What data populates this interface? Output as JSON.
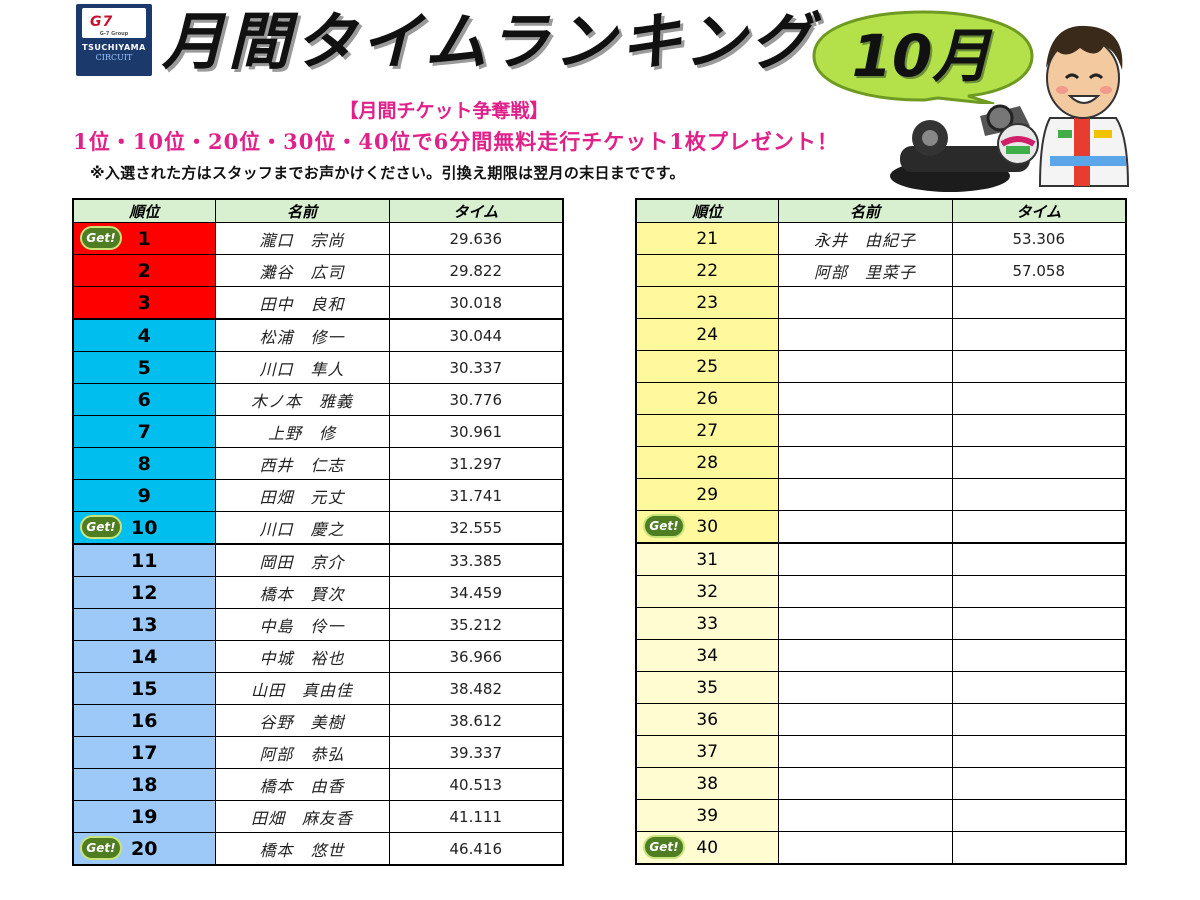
{
  "logo": {
    "top_mark": "G7",
    "top_sub": "G-7 Group",
    "line1": "TSUCHIYAMA",
    "line2": "CIRCUIT"
  },
  "header": {
    "title": "月間タイムランキング",
    "month": "10月",
    "campaign_title": "【月間チケット争奪戦】",
    "campaign_text": "1位・10位・20位・30位・40位で6分間無料走行チケット1枚プレゼント！",
    "note": "※入選された方はスタッフまでお声かけください。引換え期限は翌月の末日までです。"
  },
  "columns": {
    "position": "順位",
    "name": "名前",
    "time": "タイム"
  },
  "badge_label": "Get!",
  "colors": {
    "top3": "#ff0000",
    "rank4_10": "#00bfef",
    "rank11_20": "#9cc9f7",
    "rank21_30": "#fff89c",
    "rank31_40": "#fffcd2",
    "header_bg": "#d8f0d0",
    "campaign_pink": "#e0218a",
    "bubble_green": "#b4e04a"
  },
  "left_rows": [
    {
      "position": "1",
      "name": "瀧口　宗尚",
      "time": "29.636",
      "badge": true
    },
    {
      "position": "2",
      "name": "灘谷　広司",
      "time": "29.822",
      "badge": false
    },
    {
      "position": "3",
      "name": "田中　良和",
      "time": "30.018",
      "badge": false
    },
    {
      "position": "4",
      "name": "松浦　修一",
      "time": "30.044",
      "badge": false
    },
    {
      "position": "5",
      "name": "川口　隼人",
      "time": "30.337",
      "badge": false
    },
    {
      "position": "6",
      "name": "木ノ本　雅義",
      "time": "30.776",
      "badge": false
    },
    {
      "position": "7",
      "name": "上野　修",
      "time": "30.961",
      "badge": false
    },
    {
      "position": "8",
      "name": "西井　仁志",
      "time": "31.297",
      "badge": false
    },
    {
      "position": "9",
      "name": "田畑　元丈",
      "time": "31.741",
      "badge": false
    },
    {
      "position": "10",
      "name": "川口　慶之",
      "time": "32.555",
      "badge": true
    },
    {
      "position": "11",
      "name": "岡田　京介",
      "time": "33.385",
      "badge": false
    },
    {
      "position": "12",
      "name": "橋本　賢次",
      "time": "34.459",
      "badge": false
    },
    {
      "position": "13",
      "name": "中島　伶一",
      "time": "35.212",
      "badge": false
    },
    {
      "position": "14",
      "name": "中城　裕也",
      "time": "36.966",
      "badge": false
    },
    {
      "position": "15",
      "name": "山田　真由佳",
      "time": "38.482",
      "badge": false
    },
    {
      "position": "16",
      "name": "谷野　美樹",
      "time": "38.612",
      "badge": false
    },
    {
      "position": "17",
      "name": "阿部　恭弘",
      "time": "39.337",
      "badge": false
    },
    {
      "position": "18",
      "name": "橋本　由香",
      "time": "40.513",
      "badge": false
    },
    {
      "position": "19",
      "name": "田畑　麻友香",
      "time": "41.111",
      "badge": false
    },
    {
      "position": "20",
      "name": "橋本　悠世",
      "time": "46.416",
      "badge": true
    }
  ],
  "right_rows": [
    {
      "position": "21",
      "name": "永井　由紀子",
      "time": "53.306",
      "badge": false
    },
    {
      "position": "22",
      "name": "阿部　里菜子",
      "time": "57.058",
      "badge": false
    },
    {
      "position": "23",
      "name": "",
      "time": "",
      "badge": false
    },
    {
      "position": "24",
      "name": "",
      "time": "",
      "badge": false
    },
    {
      "position": "25",
      "name": "",
      "time": "",
      "badge": false
    },
    {
      "position": "26",
      "name": "",
      "time": "",
      "badge": false
    },
    {
      "position": "27",
      "name": "",
      "time": "",
      "badge": false
    },
    {
      "position": "28",
      "name": "",
      "time": "",
      "badge": false
    },
    {
      "position": "29",
      "name": "",
      "time": "",
      "badge": false
    },
    {
      "position": "30",
      "name": "",
      "time": "",
      "badge": true
    },
    {
      "position": "31",
      "name": "",
      "time": "",
      "badge": false
    },
    {
      "position": "32",
      "name": "",
      "time": "",
      "badge": false
    },
    {
      "position": "33",
      "name": "",
      "time": "",
      "badge": false
    },
    {
      "position": "34",
      "name": "",
      "time": "",
      "badge": false
    },
    {
      "position": "35",
      "name": "",
      "time": "",
      "badge": false
    },
    {
      "position": "36",
      "name": "",
      "time": "",
      "badge": false
    },
    {
      "position": "37",
      "name": "",
      "time": "",
      "badge": false
    },
    {
      "position": "38",
      "name": "",
      "time": "",
      "badge": false
    },
    {
      "position": "39",
      "name": "",
      "time": "",
      "badge": false
    },
    {
      "position": "40",
      "name": "",
      "time": "",
      "badge": true
    }
  ]
}
